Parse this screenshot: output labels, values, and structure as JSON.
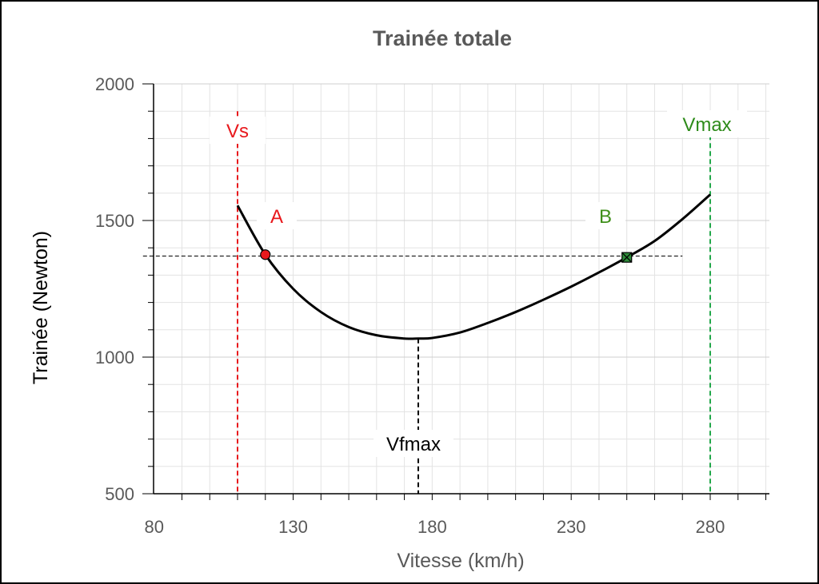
{
  "chart_data": {
    "type": "line",
    "title": "Trainée totale",
    "xlabel": "Vitesse (km/h)",
    "ylabel": "Trainée (Newton)",
    "xlim": [
      80,
      300
    ],
    "ylim": [
      500,
      2000
    ],
    "x_ticks": [
      80,
      130,
      180,
      230,
      280
    ],
    "y_ticks": [
      500,
      1000,
      1500,
      2000
    ],
    "grid": true,
    "series": [
      {
        "color": "#000000",
        "x": [
          110,
          120,
          130,
          140,
          150,
          160,
          170,
          175,
          180,
          190,
          200,
          210,
          220,
          230,
          240,
          250,
          260,
          270,
          280
        ],
        "y": [
          1555,
          1375,
          1250,
          1165,
          1110,
          1080,
          1068,
          1068,
          1070,
          1090,
          1125,
          1165,
          1210,
          1258,
          1310,
          1365,
          1425,
          1505,
          1595
        ]
      }
    ],
    "reference_lines": [
      {
        "type": "vertical",
        "x": 110,
        "y_from": 500,
        "y_to": 1900,
        "color": "#e8181c",
        "style": "dashed",
        "label": "Vs"
      },
      {
        "type": "vertical",
        "x": 175,
        "y_from": 500,
        "y_to": 1068,
        "color": "#000000",
        "style": "dashed",
        "label": "Vfmax"
      },
      {
        "type": "vertical",
        "x": 280,
        "y_from": 500,
        "y_to": 1900,
        "color": "#22a84a",
        "style": "dashed",
        "label": "Vmax"
      },
      {
        "type": "horizontal",
        "y": 1370,
        "x_from": 76,
        "x_to": 270,
        "color": "#000000",
        "style": "dashed"
      }
    ],
    "points": [
      {
        "label": "A",
        "x": 120,
        "y": 1375,
        "color": "#e8181c",
        "marker": "circle"
      },
      {
        "label": "B",
        "x": 250,
        "y": 1365,
        "color": "#2e8b3a",
        "marker": "square-x"
      }
    ]
  }
}
